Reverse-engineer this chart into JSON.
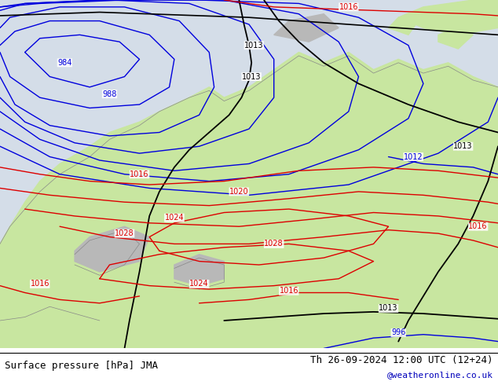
{
  "title_left": "Surface pressure [hPa] JMA",
  "title_right": "Th 26-09-2024 12:00 UTC (12+24)",
  "watermark": "@weatheronline.co.uk",
  "ocean_color": "#d4dde8",
  "land_green_color": "#c8e6a0",
  "land_gray_color": "#b8b8b8",
  "coast_color": "#888888",
  "blue": "#0000dd",
  "red": "#dd0000",
  "black": "#000000",
  "white": "#ffffff"
}
